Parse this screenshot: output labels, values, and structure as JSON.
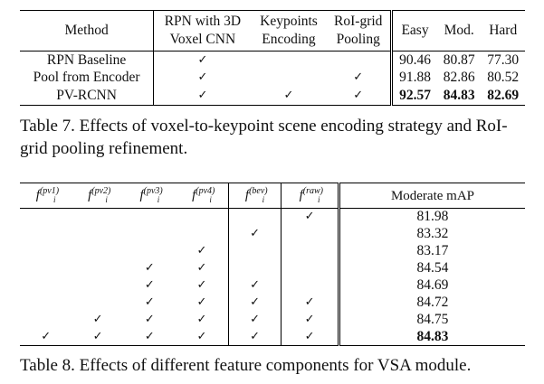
{
  "table7": {
    "headers": {
      "method": "Method",
      "rpn": [
        "RPN with 3D",
        "Voxel CNN"
      ],
      "kp": [
        "Keypoints",
        "Encoding"
      ],
      "roi": [
        "RoI-grid",
        "Pooling"
      ],
      "easy": "Easy",
      "mod": "Mod.",
      "hard": "Hard"
    },
    "rows": [
      {
        "method": "RPN Baseline",
        "rpn": "✓",
        "kp": "",
        "roi": "",
        "easy": "90.46",
        "mod": "80.87",
        "hard": "77.30"
      },
      {
        "method": "Pool from Encoder",
        "rpn": "✓",
        "kp": "",
        "roi": "✓",
        "easy": "91.88",
        "mod": "82.86",
        "hard": "80.52"
      },
      {
        "method": "PV-RCNN",
        "rpn": "✓",
        "kp": "✓",
        "roi": "✓",
        "easy": "92.57",
        "mod": "84.83",
        "hard": "82.69"
      }
    ],
    "caption": "Table 7. Effects of voxel-to-keypoint scene encoding strategy and RoI-grid pooling refinement."
  },
  "table8": {
    "headers": {
      "base": "f",
      "sub": "i",
      "sups": [
        "(pv1)",
        "(pv2)",
        "(pv3)",
        "(pv4)",
        "(bev)",
        "(raw)"
      ],
      "map": "Moderate mAP"
    },
    "rows": [
      {
        "c": [
          "",
          "",
          "",
          "",
          "",
          "✓"
        ],
        "map": "81.98"
      },
      {
        "c": [
          "",
          "",
          "",
          "",
          "✓",
          ""
        ],
        "map": "83.32"
      },
      {
        "c": [
          "",
          "",
          "",
          "✓",
          "",
          ""
        ],
        "map": "83.17"
      },
      {
        "c": [
          "",
          "",
          "✓",
          "✓",
          "",
          ""
        ],
        "map": "84.54"
      },
      {
        "c": [
          "",
          "",
          "✓",
          "✓",
          "✓",
          ""
        ],
        "map": "84.69"
      },
      {
        "c": [
          "",
          "",
          "✓",
          "✓",
          "✓",
          "✓"
        ],
        "map": "84.72"
      },
      {
        "c": [
          "",
          "✓",
          "✓",
          "✓",
          "✓",
          "✓"
        ],
        "map": "84.75"
      },
      {
        "c": [
          "✓",
          "✓",
          "✓",
          "✓",
          "✓",
          "✓"
        ],
        "map": "84.83"
      }
    ],
    "caption": "Table 8. Effects of different feature components for VSA module."
  }
}
